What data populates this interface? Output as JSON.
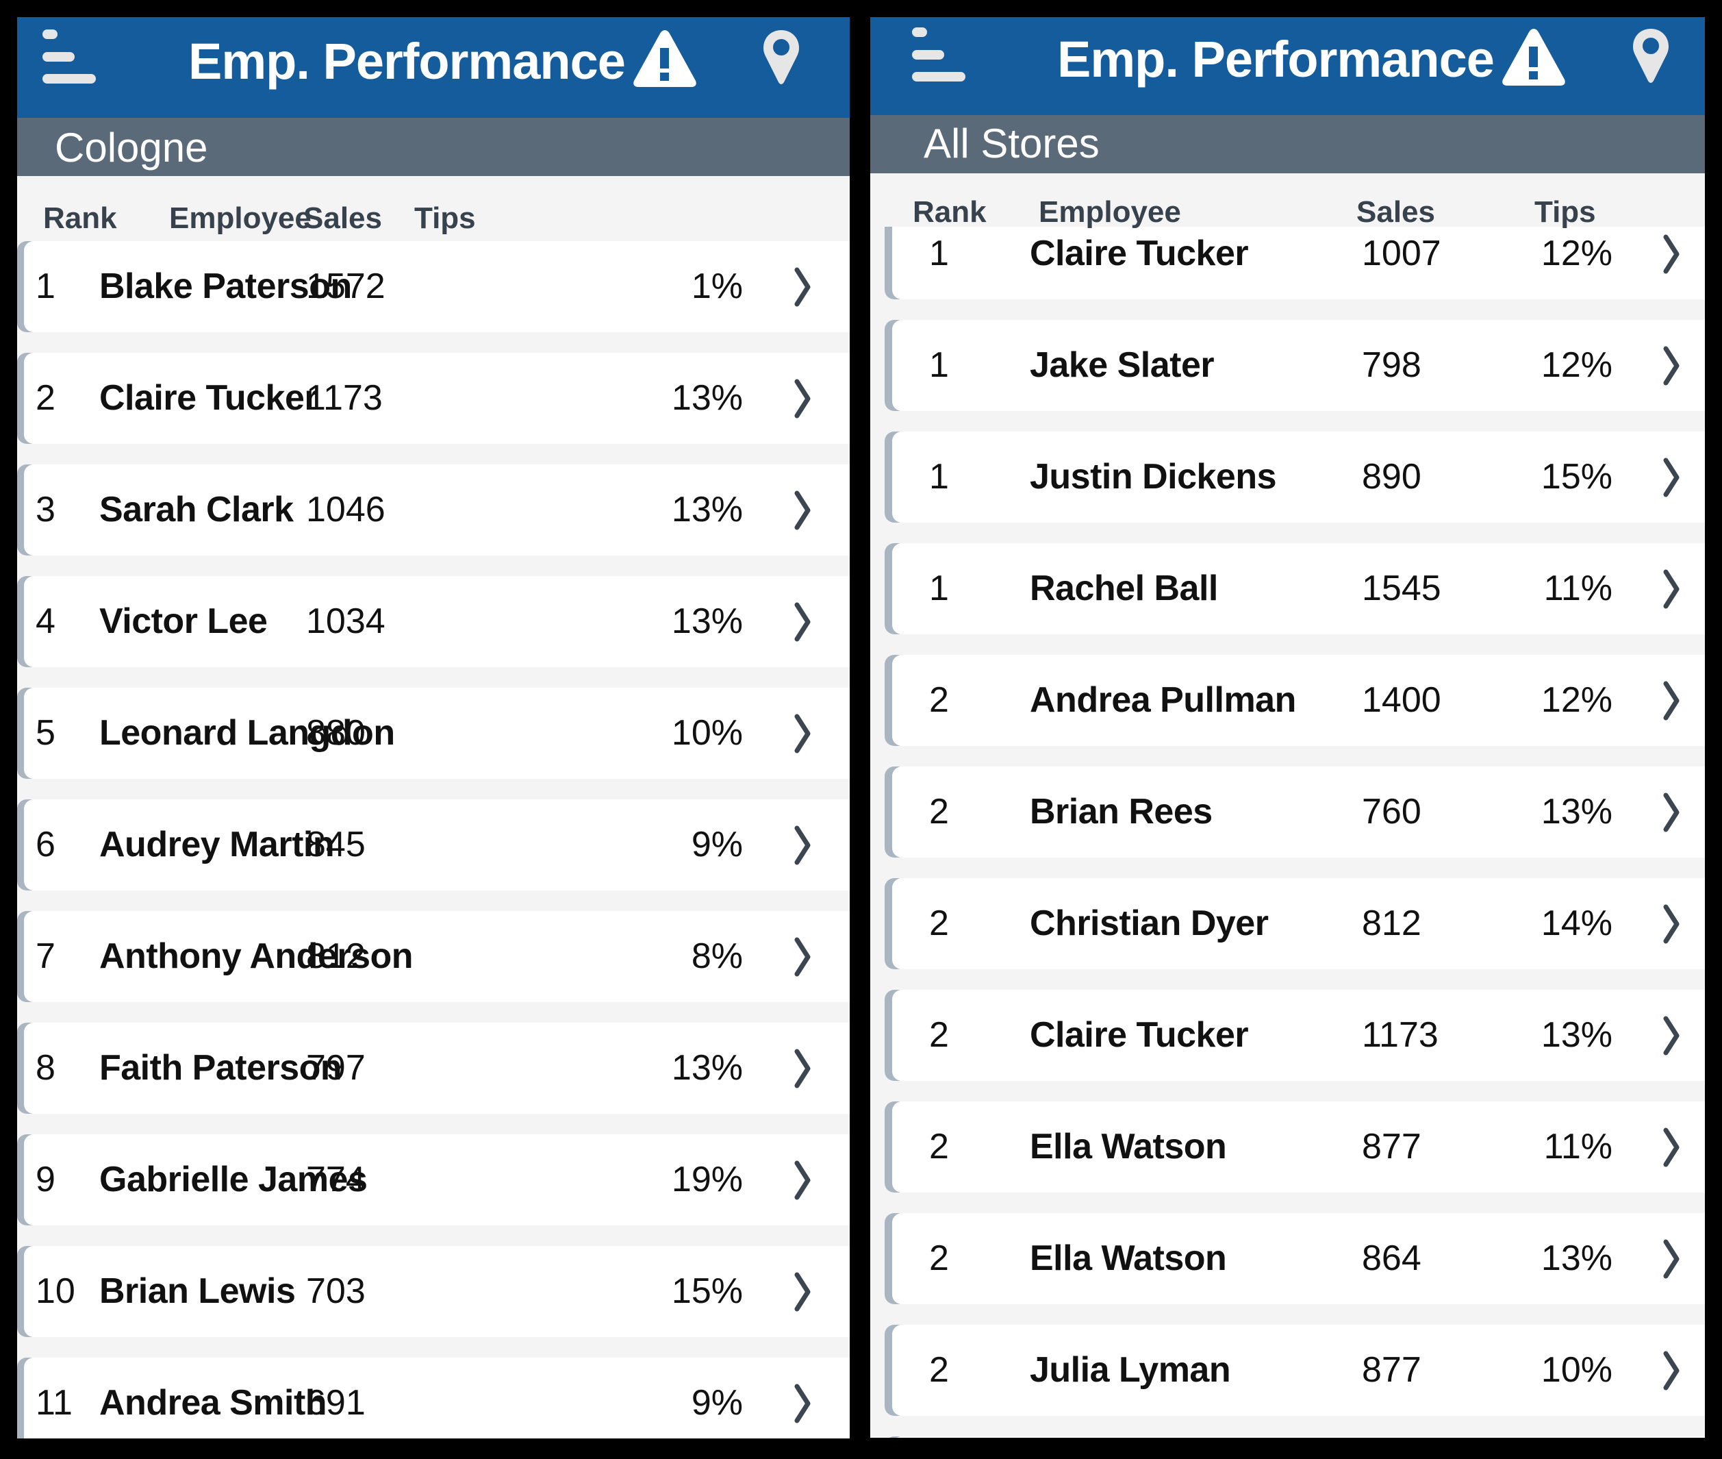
{
  "colors": {
    "header_blue": "#155c9c",
    "subheader_gray": "#5b6a78",
    "list_bg": "#f4f4f4",
    "card_bg": "#ffffff",
    "card_accent": "#a9b6c2",
    "column_header_text": "#37424d",
    "chevron": "#3c4650",
    "icon_light": "#e6e6e6"
  },
  "icons": {
    "menu": "hamburger-menu-icon",
    "alert": "warning-triangle-icon",
    "location": "map-pin-icon",
    "row_action": "chevron-right-icon"
  },
  "panels": [
    {
      "header": {
        "title": "Emp. Performance"
      },
      "store": "Cologne",
      "columns": {
        "rank": "Rank",
        "employee": "Employee",
        "sales": "Sales",
        "tips": "Tips"
      },
      "rows": [
        {
          "rank": "1",
          "employee": "Blake Paterson",
          "sales": "1572",
          "tips": "1%"
        },
        {
          "rank": "2",
          "employee": "Claire Tucker",
          "sales": "1173",
          "tips": "13%"
        },
        {
          "rank": "3",
          "employee": "Sarah Clark",
          "sales": "1046",
          "tips": "13%"
        },
        {
          "rank": "4",
          "employee": "Victor Lee",
          "sales": "1034",
          "tips": "13%"
        },
        {
          "rank": "5",
          "employee": "Leonard Langdon",
          "sales": "880",
          "tips": "10%"
        },
        {
          "rank": "6",
          "employee": "Audrey Martin",
          "sales": "845",
          "tips": "9%"
        },
        {
          "rank": "7",
          "employee": "Anthony Anderson",
          "sales": "812",
          "tips": "8%"
        },
        {
          "rank": "8",
          "employee": "Faith Paterson",
          "sales": "797",
          "tips": "13%"
        },
        {
          "rank": "9",
          "employee": "Gabrielle James",
          "sales": "774",
          "tips": "19%"
        },
        {
          "rank": "10",
          "employee": "Brian Lewis",
          "sales": "703",
          "tips": "15%"
        },
        {
          "rank": "11",
          "employee": "Andrea Smith",
          "sales": "691",
          "tips": "9%"
        }
      ]
    },
    {
      "header": {
        "title": "Emp. Performance"
      },
      "store": "All Stores",
      "columns": {
        "rank": "Rank",
        "employee": "Employee",
        "sales": "Sales",
        "tips": "Tips"
      },
      "rows": [
        {
          "rank": "1",
          "employee": "Claire Tucker",
          "sales": "1007",
          "tips": "12%"
        },
        {
          "rank": "1",
          "employee": "Jake Slater",
          "sales": "798",
          "tips": "12%"
        },
        {
          "rank": "1",
          "employee": "Justin Dickens",
          "sales": "890",
          "tips": "15%"
        },
        {
          "rank": "1",
          "employee": "Rachel Ball",
          "sales": "1545",
          "tips": "11%"
        },
        {
          "rank": "2",
          "employee": "Andrea Pullman",
          "sales": "1400",
          "tips": "12%"
        },
        {
          "rank": "2",
          "employee": "Brian Rees",
          "sales": "760",
          "tips": "13%"
        },
        {
          "rank": "2",
          "employee": "Christian Dyer",
          "sales": "812",
          "tips": "14%"
        },
        {
          "rank": "2",
          "employee": "Claire Tucker",
          "sales": "1173",
          "tips": "13%"
        },
        {
          "rank": "2",
          "employee": "Ella Watson",
          "sales": "877",
          "tips": "11%"
        },
        {
          "rank": "2",
          "employee": "Ella Watson",
          "sales": "864",
          "tips": "13%"
        },
        {
          "rank": "2",
          "employee": "Julia Lyman",
          "sales": "877",
          "tips": "10%"
        },
        {
          "rank": "",
          "employee": "",
          "sales": "",
          "tips": ""
        }
      ]
    }
  ]
}
